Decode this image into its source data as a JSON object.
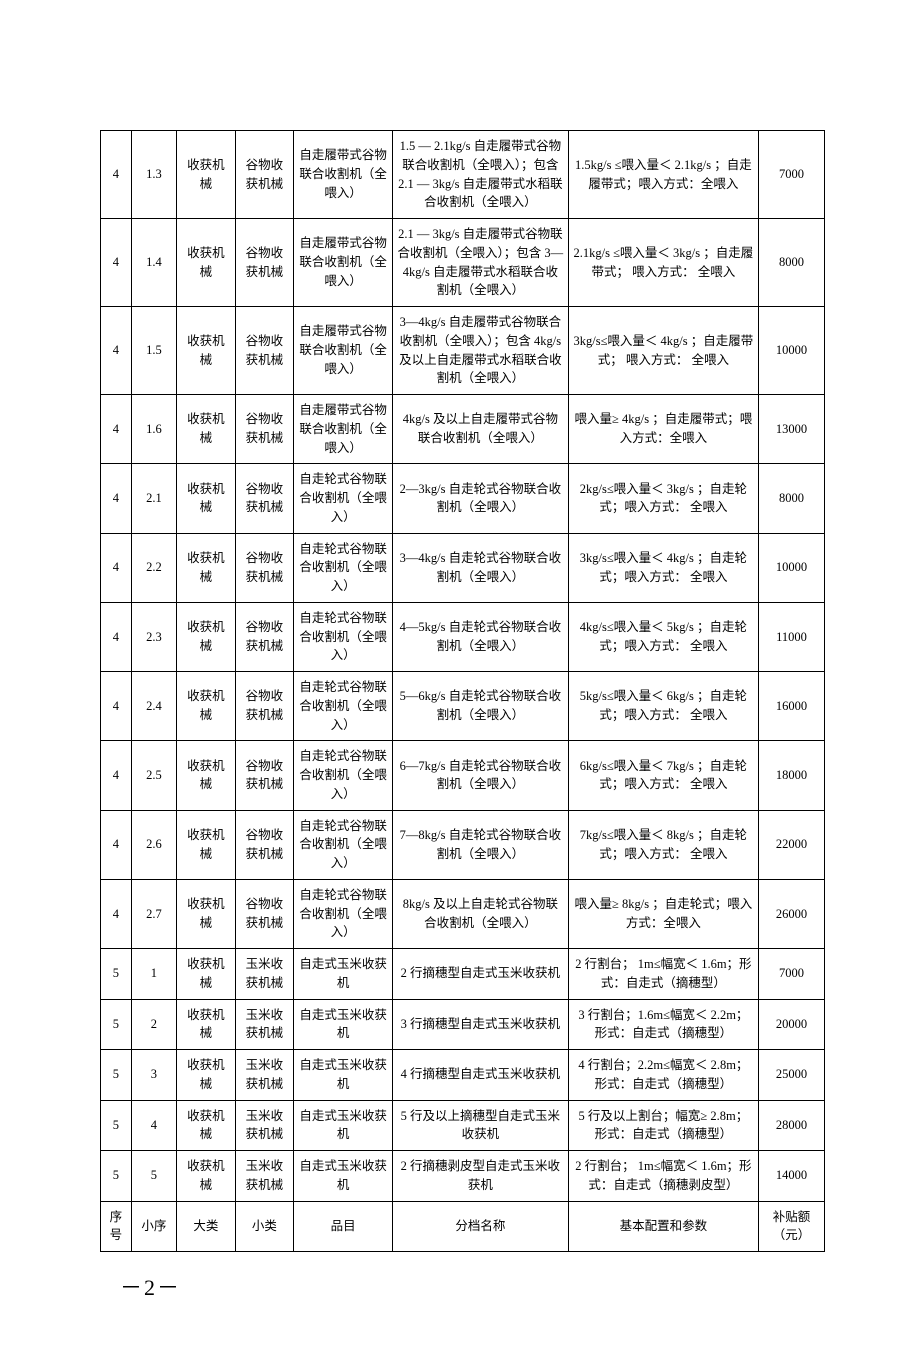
{
  "table": {
    "columns": [
      {
        "class": "col0"
      },
      {
        "class": "col1"
      },
      {
        "class": "col2"
      },
      {
        "class": "col3"
      },
      {
        "class": "col4"
      },
      {
        "class": "col5"
      },
      {
        "class": "col6"
      },
      {
        "class": "col7"
      }
    ],
    "rows": [
      [
        "4",
        "1.3",
        "收获机械",
        "谷物收获机械",
        "自走履带式谷物联合收割机（全喂入）",
        "1.5 — 2.1kg/s 自走履带式谷物联合收割机（全喂入）；包含 2.1 — 3kg/s 自走履带式水稻联合收割机（全喂入）",
        "1.5kg/s ≤喂入量＜ 2.1kg/s ；自走履带式；喂入方式：全喂入",
        "7000"
      ],
      [
        "4",
        "1.4",
        "收获机械",
        "谷物收获机械",
        "自走履带式谷物联合收割机（全喂入）",
        "2.1 — 3kg/s 自走履带式谷物联合收割机（全喂入）；包含 3—4kg/s 自走履带式水稻联合收割机（全喂入）",
        "2.1kg/s ≤喂入量＜ 3kg/s ；自走履带式； 喂入方式： 全喂入",
        "8000"
      ],
      [
        "4",
        "1.5",
        "收获机械",
        "谷物收获机械",
        "自走履带式谷物联合收割机（全喂入）",
        "3—4kg/s 自走履带式谷物联合收割机（全喂入）；包含 4kg/s 及以上自走履带式水稻联合收割机（全喂入）",
        "3kg/s≤喂入量＜ 4kg/s ；自走履带式； 喂入方式： 全喂入",
        "10000"
      ],
      [
        "4",
        "1.6",
        "收获机械",
        "谷物收获机械",
        "自走履带式谷物联合收割机（全喂入）",
        "4kg/s 及以上自走履带式谷物联合收割机（全喂入）",
        "喂入量≥ 4kg/s ；自走履带式；喂入方式：全喂入",
        "13000"
      ],
      [
        "4",
        "2.1",
        "收获机械",
        "谷物收获机械",
        "自走轮式谷物联合收割机（全喂入）",
        "2—3kg/s 自走轮式谷物联合收割机（全喂入）",
        "2kg/s≤喂入量＜ 3kg/s ；自走轮式；喂入方式： 全喂入",
        "8000"
      ],
      [
        "4",
        "2.2",
        "收获机械",
        "谷物收获机械",
        "自走轮式谷物联合收割机（全喂入）",
        "3—4kg/s 自走轮式谷物联合收割机（全喂入）",
        "3kg/s≤喂入量＜ 4kg/s ；自走轮式；喂入方式： 全喂入",
        "10000"
      ],
      [
        "4",
        "2.3",
        "收获机械",
        "谷物收获机械",
        "自走轮式谷物联合收割机（全喂入）",
        "4—5kg/s 自走轮式谷物联合收割机（全喂入）",
        "4kg/s≤喂入量＜ 5kg/s ；自走轮式；喂入方式： 全喂入",
        "11000"
      ],
      [
        "4",
        "2.4",
        "收获机械",
        "谷物收获机械",
        "自走轮式谷物联合收割机（全喂入）",
        "5—6kg/s 自走轮式谷物联合收割机（全喂入）",
        "5kg/s≤喂入量＜ 6kg/s ；自走轮式；喂入方式： 全喂入",
        "16000"
      ],
      [
        "4",
        "2.5",
        "收获机械",
        "谷物收获机械",
        "自走轮式谷物联合收割机（全喂入）",
        "6—7kg/s 自走轮式谷物联合收割机（全喂入）",
        "6kg/s≤喂入量＜ 7kg/s ；自走轮式；喂入方式： 全喂入",
        "18000"
      ],
      [
        "4",
        "2.6",
        "收获机械",
        "谷物收获机械",
        "自走轮式谷物联合收割机（全喂入）",
        "7—8kg/s 自走轮式谷物联合收割机（全喂入）",
        "7kg/s≤喂入量＜ 8kg/s ；自走轮式；喂入方式： 全喂入",
        "22000"
      ],
      [
        "4",
        "2.7",
        "收获机械",
        "谷物收获机械",
        "自走轮式谷物联合收割机（全喂入）",
        "8kg/s 及以上自走轮式谷物联合收割机（全喂入）",
        "喂入量≥ 8kg/s ；自走轮式；喂入方式：全喂入",
        "26000"
      ],
      [
        "5",
        "1",
        "收获机械",
        "玉米收获机械",
        "自走式玉米收获机",
        "2 行摘穗型自走式玉米收获机",
        "2 行割台； 1m≤幅宽＜ 1.6m；形式：自走式（摘穗型）",
        "7000"
      ],
      [
        "5",
        "2",
        "收获机械",
        "玉米收获机械",
        "自走式玉米收获机",
        "3 行摘穗型自走式玉米收获机",
        "3 行割台；1.6m≤幅宽＜ 2.2m；形式：自走式（摘穗型）",
        "20000"
      ],
      [
        "5",
        "3",
        "收获机械",
        "玉米收获机械",
        "自走式玉米收获机",
        "4 行摘穗型自走式玉米收获机",
        "4 行割台；2.2m≤幅宽＜ 2.8m；形式：自走式（摘穗型）",
        "25000"
      ],
      [
        "5",
        "4",
        "收获机械",
        "玉米收获机械",
        "自走式玉米收获机",
        "5 行及以上摘穗型自走式玉米收获机",
        "5 行及以上割台；幅宽≥ 2.8m；形式：自走式（摘穗型）",
        "28000"
      ],
      [
        "5",
        "5",
        "收获机械",
        "玉米收获机械",
        "自走式玉米收获机",
        "2 行摘穗剥皮型自走式玉米收获机",
        "2 行割台； 1m≤幅宽＜ 1.6m；形式：自走式（摘穗剥皮型）",
        "14000"
      ],
      [
        "序号",
        "小序",
        "大类",
        "小类",
        "品目",
        "分档名称",
        "基本配置和参数",
        "补贴额（元）"
      ]
    ]
  },
  "pageNumber": "－2－",
  "style": {
    "font_family": "SimSun",
    "base_fontsize": 12.5,
    "border_color": "#000000",
    "background_color": "#ffffff"
  }
}
